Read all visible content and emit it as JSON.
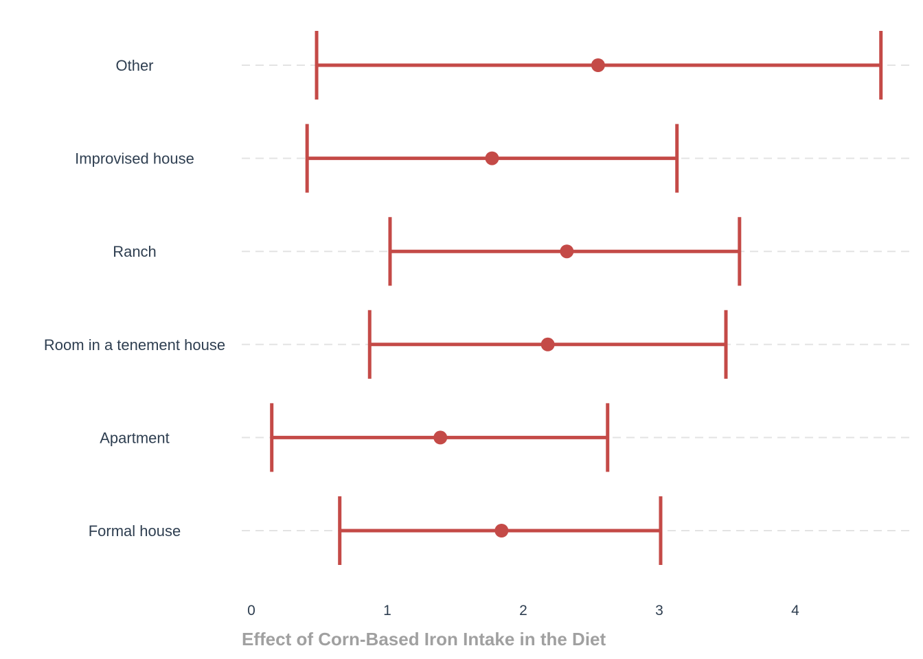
{
  "chart_data": {
    "type": "errorbar",
    "orientation": "horizontal",
    "title": "",
    "xlabel": "Effect of Corn-Based Iron Intake in the Diet",
    "ylabel": "",
    "xlim": [
      -0.08,
      4.85
    ],
    "x_ticks": [
      0,
      1,
      2,
      3,
      4
    ],
    "grid": "horizontal dashed",
    "legend": "none",
    "color": "#c44a47",
    "categories": [
      "Other",
      "Improvised house",
      "Ranch",
      "Room in a tenement house",
      "Apartment",
      "Formal house"
    ],
    "estimates": [
      2.55,
      1.77,
      2.32,
      2.18,
      1.39,
      1.84
    ],
    "lower": [
      0.48,
      0.41,
      1.02,
      0.87,
      0.15,
      0.65
    ],
    "upper": [
      4.63,
      3.13,
      3.59,
      3.49,
      2.62,
      3.01
    ]
  }
}
